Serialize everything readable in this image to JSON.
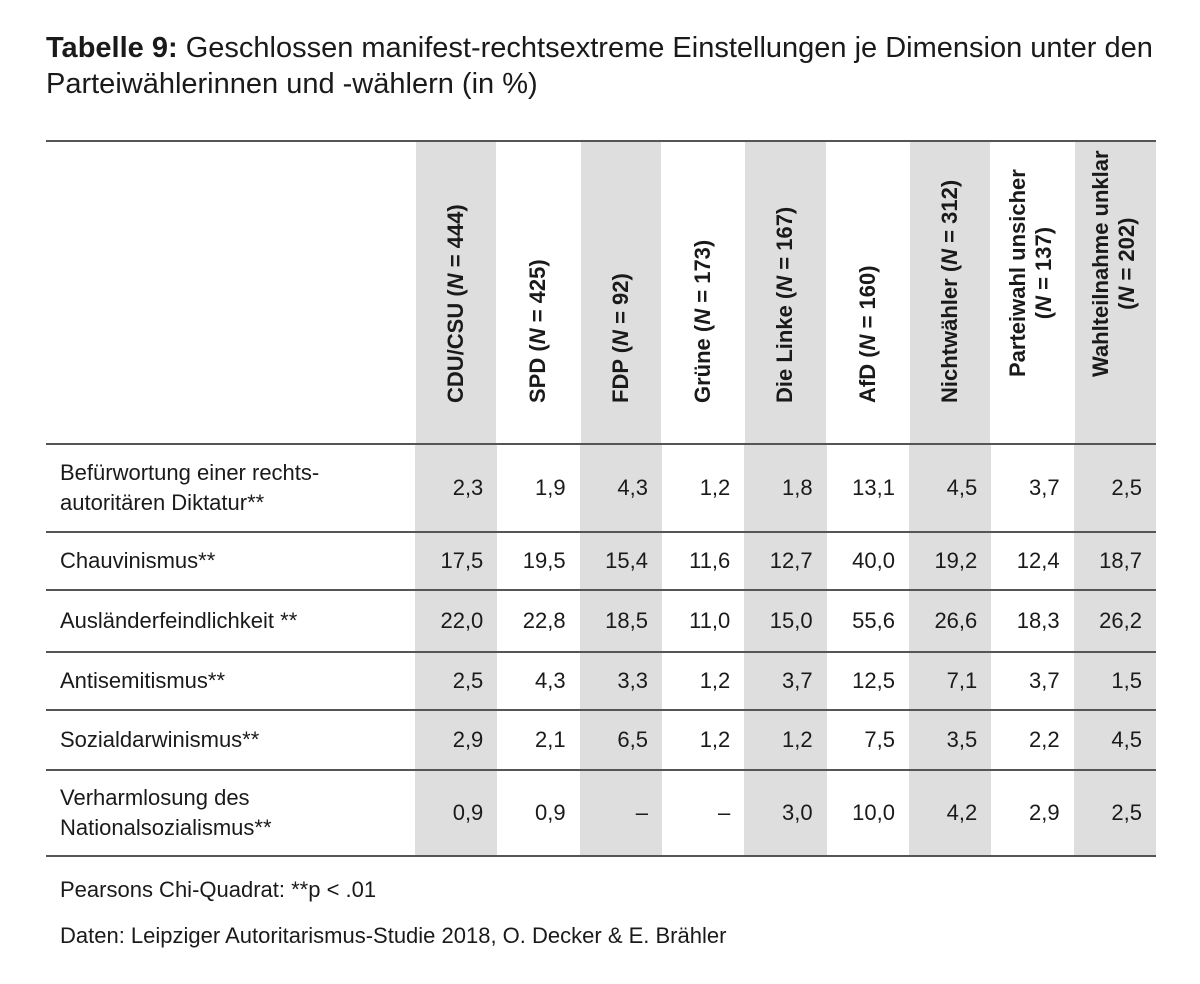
{
  "title": {
    "label": "Tabelle 9:",
    "text": "Geschlossen manifest-rechtsextreme Einstellungen je Dimension unter den Parteiwählerinnen und -wählern (in %)"
  },
  "table": {
    "columns": [
      {
        "name": "CDU/CSU",
        "n_prefix": "(",
        "n_label": "N",
        "n_value": " = 444)",
        "lines": 1,
        "shaded": true
      },
      {
        "name": "SPD",
        "n_prefix": "(",
        "n_label": "N",
        "n_value": " = 425)",
        "lines": 1,
        "shaded": false
      },
      {
        "name": "FDP",
        "n_prefix": "(",
        "n_label": "N",
        "n_value": " = 92)",
        "lines": 1,
        "shaded": true
      },
      {
        "name": "Grüne",
        "n_prefix": "(",
        "n_label": "N",
        "n_value": " = 173)",
        "lines": 1,
        "shaded": false
      },
      {
        "name": "Die Linke",
        "n_prefix": "(",
        "n_label": "N",
        "n_value": " = 167)",
        "lines": 1,
        "shaded": true
      },
      {
        "name": "AfD",
        "n_prefix": "(",
        "n_label": "N",
        "n_value": " = 160)",
        "lines": 1,
        "shaded": false
      },
      {
        "name": "Nichtwähler",
        "n_prefix": "(",
        "n_label": "N",
        "n_value": " = 312)",
        "lines": 1,
        "shaded": true
      },
      {
        "name": "Parteiwahl unsicher",
        "n_prefix": "(",
        "n_label": "N",
        "n_value": " = 137)",
        "lines": 2,
        "shaded": false
      },
      {
        "name": "Wahlteilnahme unklar",
        "n_prefix": "(",
        "n_label": "N",
        "n_value": " = 202)",
        "lines": 2,
        "shaded": true
      }
    ],
    "rows": [
      {
        "label": "Befürwortung einer rechts-autoritären Diktatur**",
        "label_lines": [
          "Befürwortung einer rechts-",
          "autoritären Diktatur**"
        ],
        "values": [
          "2,3",
          "1,9",
          "4,3",
          "1,2",
          "1,8",
          "13,1",
          "4,5",
          "3,7",
          "2,5"
        ]
      },
      {
        "label": "Chauvinismus**",
        "label_lines": [
          "Chauvinismus**"
        ],
        "values": [
          "17,5",
          "19,5",
          "15,4",
          "11,6",
          "12,7",
          "40,0",
          "19,2",
          "12,4",
          "18,7"
        ]
      },
      {
        "label": "Ausländerfeindlichkeit **",
        "label_lines": [
          "Ausländerfeindlichkeit **"
        ],
        "values": [
          "22,0",
          "22,8",
          "18,5",
          "11,0",
          "15,0",
          "55,6",
          "26,6",
          "18,3",
          "26,2"
        ]
      },
      {
        "label": "Antisemitismus**",
        "label_lines": [
          "Antisemitismus**"
        ],
        "values": [
          "2,5",
          "4,3",
          "3,3",
          "1,2",
          "3,7",
          "12,5",
          "7,1",
          "3,7",
          "1,5"
        ]
      },
      {
        "label": "Sozialdarwinismus**",
        "label_lines": [
          "Sozialdarwinismus**"
        ],
        "values": [
          "2,9",
          "2,1",
          "6,5",
          "1,2",
          "1,2",
          "7,5",
          "3,5",
          "2,2",
          "4,5"
        ]
      },
      {
        "label": "Verharmlosung des Nationalsozialismus**",
        "label_lines": [
          "Verharmlosung des",
          "Nationalsozialismus**"
        ],
        "values": [
          "0,9",
          "0,9",
          "–",
          "–",
          "3,0",
          "10,0",
          "4,2",
          "2,9",
          "2,5"
        ]
      }
    ]
  },
  "footnotes": {
    "significance": "Pearsons Chi-Quadrat: **p < .01",
    "source": "Daten: Leipziger Autoritarismus-Studie 2018, O. Decker & E. Brähler"
  },
  "colors": {
    "shade": "#dedede",
    "rule": "#555555",
    "text": "#1a1a1a"
  }
}
